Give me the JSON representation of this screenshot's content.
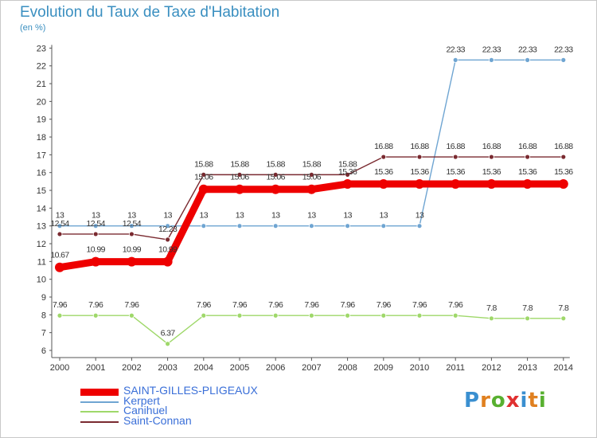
{
  "header": {
    "title": "Evolution du Taux de Taxe d'Habitation",
    "unit": "(en %)"
  },
  "logo": {
    "text": "Proxiti",
    "letters": [
      "P",
      "r",
      "o",
      "x",
      "i",
      "t",
      "i"
    ],
    "colors": [
      "#3a8fd0",
      "#e08020",
      "#58b030",
      "#e03030",
      "#3a8fd0",
      "#e08020",
      "#58b030"
    ]
  },
  "chart_data": {
    "type": "line",
    "title": "Evolution du Taux de Taxe d'Habitation",
    "ylabel": "(en %)",
    "xlabel": "",
    "x": [
      "2000",
      "2001",
      "2002",
      "2003",
      "2004",
      "2005",
      "2006",
      "2007",
      "2008",
      "2009",
      "2010",
      "2011",
      "2012",
      "2013",
      "2014"
    ],
    "ylim": [
      6,
      23
    ],
    "yticks": [
      "6",
      "7",
      "8",
      "9",
      "10",
      "11",
      "12",
      "13",
      "14",
      "15",
      "16",
      "17",
      "18",
      "19",
      "20",
      "21",
      "22",
      "23"
    ],
    "grid": false,
    "legend_position": "bottom-left",
    "series": [
      {
        "name": "SAINT-GILLES-PLIGEAUX",
        "color": "#ee0000",
        "values": [
          10.67,
          10.99,
          10.99,
          10.99,
          15.06,
          15.06,
          15.06,
          15.06,
          15.36,
          15.36,
          15.36,
          15.36,
          15.36,
          15.36,
          15.36
        ],
        "labels": [
          "10.67",
          "10.99",
          "10.99",
          "10.99",
          "15.06",
          "15.06",
          "15.06",
          "15.06",
          "15.36",
          "15.36",
          "15.36",
          "15.36",
          "15.36",
          "15.36",
          "15.36"
        ]
      },
      {
        "name": "Kerpert",
        "color": "#6fa5d2",
        "values": [
          13,
          13,
          13,
          13,
          13,
          13,
          13,
          13,
          13,
          13,
          13,
          22.33,
          22.33,
          22.33,
          22.33
        ],
        "labels": [
          "13",
          "13",
          "13",
          "13",
          "13",
          "13",
          "13",
          "13",
          "13",
          "13",
          "13",
          "22.33",
          "22.33",
          "22.33",
          "22.33"
        ]
      },
      {
        "name": "Canihuel",
        "color": "#9fd86a",
        "values": [
          7.96,
          7.96,
          7.96,
          6.37,
          7.96,
          7.96,
          7.96,
          7.96,
          7.96,
          7.96,
          7.96,
          7.96,
          7.8,
          7.8,
          7.8
        ],
        "labels": [
          "7.96",
          "7.96",
          "7.96",
          "6.37",
          "7.96",
          "7.96",
          "7.96",
          "7.96",
          "7.96",
          "7.96",
          "7.96",
          "7.96",
          "7.8",
          "7.8",
          "7.8"
        ]
      },
      {
        "name": "Saint-Connan",
        "color": "#7a2a30",
        "values": [
          12.54,
          12.54,
          12.54,
          12.23,
          15.88,
          15.88,
          15.88,
          15.88,
          15.88,
          16.88,
          16.88,
          16.88,
          16.88,
          16.88,
          16.88
        ],
        "labels": [
          "12.54",
          "12.54",
          "12.54",
          "12.23",
          "15.88",
          "15.88",
          "15.88",
          "15.88",
          "15.88",
          "16.88",
          "16.88",
          "16.88",
          "16.88",
          "16.88",
          "16.88"
        ]
      }
    ]
  }
}
